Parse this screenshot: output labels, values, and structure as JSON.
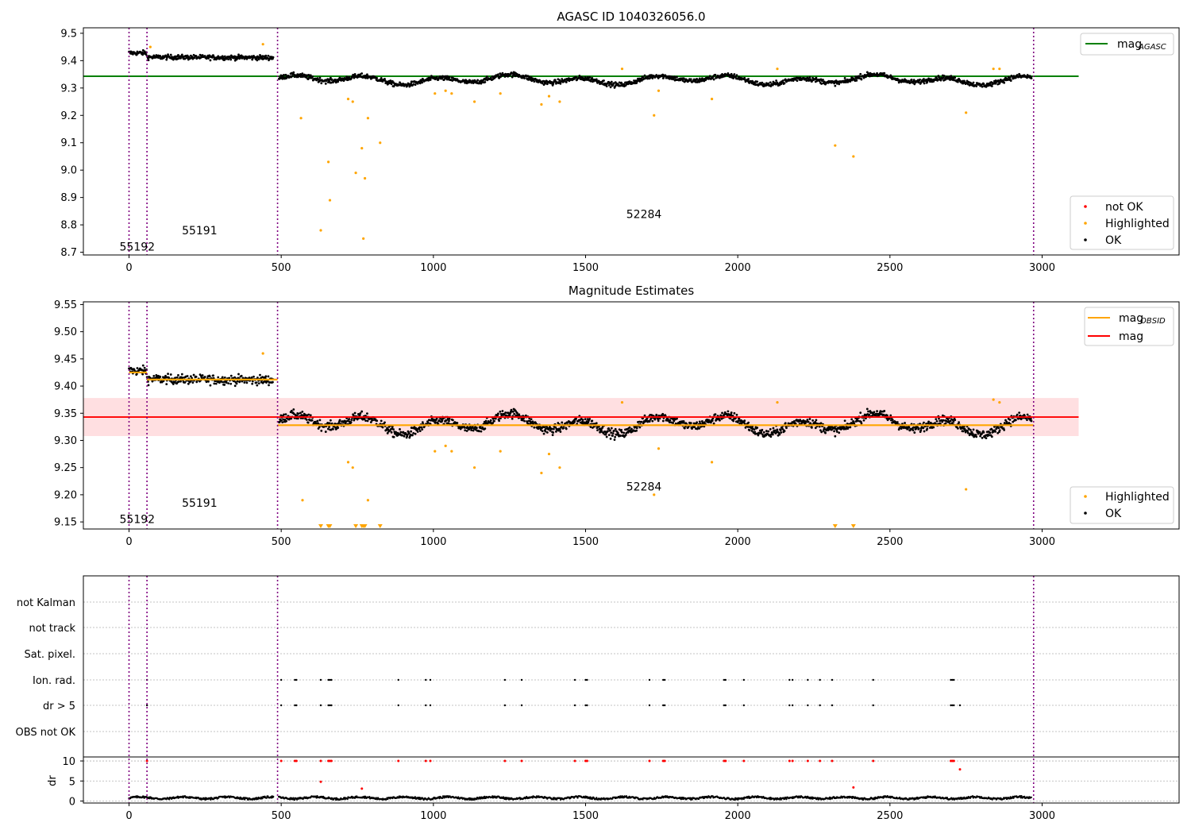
{
  "figure": {
    "title": "AGASC ID 1040326056.0",
    "boundaries_x": [
      0,
      59,
      488,
      2972
    ],
    "obsid_labels": [
      {
        "text": "55192",
        "x": 0,
        "y_top": 8.72,
        "y_mid": 9.155
      },
      {
        "text": "55191",
        "x": 205,
        "y_top": 8.78,
        "y_mid": 9.185
      },
      {
        "text": "52284",
        "x": 1665,
        "y_top": 8.84,
        "y_mid": 9.215
      }
    ],
    "colors": {
      "ok": "#000000",
      "highlighted": "#ffa500",
      "not_ok": "#ff0000",
      "agasc_line": "#008000",
      "mag_line": "#ff0000",
      "obsid_line": "#ffa500",
      "boundary": "#800080",
      "band": "#ffd9dc"
    }
  },
  "chart_data": [
    {
      "type": "scatter",
      "title": "AGASC ID 1040326056.0",
      "xlim": [
        -150,
        3450
      ],
      "ylim": [
        8.69,
        9.52
      ],
      "x_ticks": [
        0,
        500,
        1000,
        1500,
        2000,
        2500,
        3000
      ],
      "y_ticks": [
        8.7,
        8.8,
        8.9,
        9.0,
        9.1,
        9.2,
        9.3,
        9.4,
        9.5
      ],
      "y_tick_labels": [
        "8.7",
        "8.8",
        "8.9",
        "9.0",
        "9.1",
        "9.2",
        "9.3",
        "9.4",
        "9.5"
      ],
      "mag_agasc": 9.343,
      "mag_agasc_xrange": [
        -150,
        3120
      ],
      "legend": {
        "position": "top-right",
        "items": [
          {
            "label": "mag",
            "sub": "AGASC",
            "color": "#008000"
          }
        ]
      },
      "legend2": {
        "position": "bottom-right",
        "items": [
          {
            "label": "not OK",
            "color": "#ff0000"
          },
          {
            "label": "Highlighted",
            "color": "#ffa500"
          },
          {
            "label": "OK",
            "color": "#000000"
          }
        ]
      },
      "highlighted_points": [
        [
          70,
          9.45
        ],
        [
          440,
          9.46
        ],
        [
          565,
          9.19
        ],
        [
          630,
          8.78
        ],
        [
          655,
          9.03
        ],
        [
          660,
          8.89
        ],
        [
          720,
          9.26
        ],
        [
          735,
          9.25
        ],
        [
          745,
          8.99
        ],
        [
          765,
          9.08
        ],
        [
          770,
          8.75
        ],
        [
          775,
          8.97
        ],
        [
          785,
          9.19
        ],
        [
          825,
          9.1
        ],
        [
          1005,
          9.28
        ],
        [
          1040,
          9.29
        ],
        [
          1060,
          9.28
        ],
        [
          1135,
          9.25
        ],
        [
          1220,
          9.28
        ],
        [
          1355,
          9.24
        ],
        [
          1380,
          9.27
        ],
        [
          1415,
          9.25
        ],
        [
          1725,
          9.2
        ],
        [
          1740,
          9.29
        ],
        [
          1620,
          9.37
        ],
        [
          1915,
          9.26
        ],
        [
          2130,
          9.37
        ],
        [
          2320,
          9.09
        ],
        [
          2380,
          9.05
        ],
        [
          2750,
          9.21
        ],
        [
          2840,
          9.37
        ],
        [
          2860,
          9.37
        ]
      ]
    },
    {
      "type": "scatter",
      "title": "Magnitude Estimates",
      "xlim": [
        -150,
        3450
      ],
      "ylim": [
        9.137,
        9.555
      ],
      "x_ticks": [
        0,
        500,
        1000,
        1500,
        2000,
        2500,
        3000
      ],
      "y_ticks": [
        9.15,
        9.2,
        9.25,
        9.3,
        9.35,
        9.4,
        9.45,
        9.5,
        9.55
      ],
      "y_tick_labels": [
        "9.15",
        "9.20",
        "9.25",
        "9.30",
        "9.35",
        "9.40",
        "9.45",
        "9.50",
        "9.55"
      ],
      "mag": 9.343,
      "mag_band": [
        9.308,
        9.378
      ],
      "mag_xrange": [
        -150,
        3120
      ],
      "mag_obsid_segments": [
        [
          0,
          59,
          9.425
        ],
        [
          59,
          488,
          9.412
        ],
        [
          488,
          2972,
          9.328
        ]
      ],
      "legend": {
        "position": "top-right",
        "items": [
          {
            "label": "mag",
            "sub": "OBSID",
            "color": "#ffa500"
          },
          {
            "label": "mag",
            "sub": "",
            "color": "#ff0000"
          }
        ]
      },
      "legend2": {
        "position": "bottom-right",
        "items": [
          {
            "label": "Highlighted",
            "color": "#ffa500"
          },
          {
            "label": "OK",
            "color": "#000000"
          }
        ]
      },
      "highlighted_points": [
        [
          440,
          9.46
        ],
        [
          570,
          9.19
        ],
        [
          720,
          9.26
        ],
        [
          735,
          9.25
        ],
        [
          785,
          9.19
        ],
        [
          1005,
          9.28
        ],
        [
          1040,
          9.29
        ],
        [
          1060,
          9.28
        ],
        [
          1135,
          9.25
        ],
        [
          1220,
          9.28
        ],
        [
          1355,
          9.24
        ],
        [
          1380,
          9.275
        ],
        [
          1415,
          9.25
        ],
        [
          1620,
          9.37
        ],
        [
          1725,
          9.2
        ],
        [
          1740,
          9.285
        ],
        [
          1915,
          9.26
        ],
        [
          2130,
          9.37
        ],
        [
          2750,
          9.21
        ],
        [
          2840,
          9.375
        ],
        [
          2860,
          9.37
        ]
      ],
      "offscale_points_x": [
        630,
        655,
        660,
        745,
        765,
        770,
        775,
        825,
        2320,
        2380
      ]
    },
    {
      "type": "scatter",
      "title": "",
      "xlim": [
        -150,
        3450
      ],
      "x_ticks": [
        0,
        500,
        1000,
        1500,
        2000,
        2500,
        3000
      ],
      "flag_labels": [
        "not Kalman",
        "not track",
        "Sat. pixel.",
        "Ion. rad.",
        "dr > 5",
        "OBS not OK"
      ],
      "flag_events_x": [
        59,
        500,
        545,
        550,
        630,
        655,
        660,
        665,
        885,
        975,
        990,
        1235,
        1290,
        1465,
        1500,
        1505,
        1710,
        1755,
        1760,
        1955,
        1960,
        2020,
        2170,
        2180,
        2230,
        2270,
        2310,
        2445,
        2700,
        2705,
        2710
      ],
      "dr_only_event_x": 2730,
      "dr_ylabel": "dr",
      "dr_ylim": [
        -0.5,
        11
      ],
      "dr_ticks": [
        0,
        5,
        10
      ],
      "dr_high_points": [
        [
          59,
          10
        ],
        [
          500,
          10
        ],
        [
          545,
          10
        ],
        [
          550,
          10
        ],
        [
          630,
          10
        ],
        [
          655,
          10
        ],
        [
          660,
          10
        ],
        [
          665,
          10
        ],
        [
          885,
          10
        ],
        [
          975,
          10
        ],
        [
          990,
          10
        ],
        [
          1235,
          10
        ],
        [
          1290,
          10
        ],
        [
          1465,
          10
        ],
        [
          1500,
          10
        ],
        [
          1505,
          10
        ],
        [
          1710,
          10
        ],
        [
          1755,
          10
        ],
        [
          1760,
          10
        ],
        [
          1955,
          10
        ],
        [
          1960,
          10
        ],
        [
          2020,
          10
        ],
        [
          2170,
          10
        ],
        [
          2180,
          10
        ],
        [
          2230,
          10
        ],
        [
          2270,
          10
        ],
        [
          2310,
          10
        ],
        [
          2445,
          10
        ],
        [
          2700,
          10
        ],
        [
          2705,
          10
        ],
        [
          2710,
          10
        ],
        [
          2730,
          7.9
        ],
        [
          630,
          4.8
        ],
        [
          765,
          3.1
        ],
        [
          2380,
          3.4
        ]
      ]
    }
  ]
}
